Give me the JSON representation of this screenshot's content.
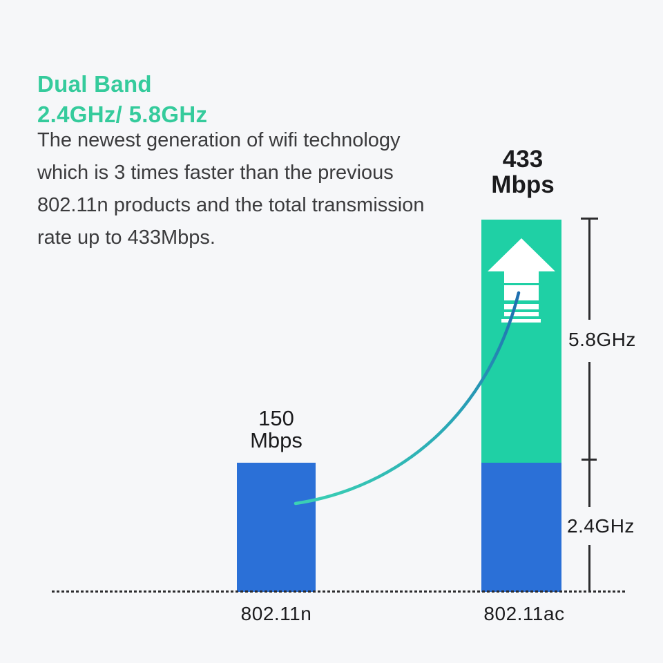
{
  "page": {
    "background": "#f6f7f9"
  },
  "header": {
    "title_line1": "Dual Band",
    "title_line2": "2.4GHz/ 5.8GHz",
    "title_color": "#35cb9c",
    "description": "The newest generation of wifi technology\nwhich is 3 times faster than the previous\n802.11n products and the total transmission\nrate up to 433Mbps."
  },
  "chart_data": {
    "type": "bar",
    "title": "",
    "xlabel": "",
    "ylabel": "",
    "categories": [
      "802.11n",
      "802.11ac"
    ],
    "series": [
      {
        "name": "2.4GHz",
        "color": "#2b70d7",
        "values": [
          150,
          150
        ]
      },
      {
        "name": "5.8GHz",
        "color": "#1fd0a5",
        "values": [
          0,
          283
        ]
      }
    ],
    "totals_mbps": [
      150,
      433
    ],
    "value_labels": [
      {
        "value": "150",
        "unit": "Mbps"
      },
      {
        "value": "433",
        "unit": "Mbps"
      }
    ],
    "band_labels": {
      "upper": "5.8GHz",
      "lower": "2.4GHz"
    },
    "ylim": [
      0,
      460
    ],
    "grid": false,
    "legend": "none",
    "baseline_style": "dashed",
    "annotations": [
      "growth curve from 802.11n bar to speed-up arrow",
      "dimension bracket marking 5.8GHz and 2.4GHz segments of 802.11ac bar"
    ]
  },
  "icons": {
    "speed_up_arrow": "white up arrow with trailing speed stripes inside 5.8GHz bar segment"
  },
  "colors": {
    "teal_bar": "#1fd0a5",
    "blue_bar": "#2b70d7",
    "curve_start": "#3bd2b4",
    "curve_end": "#1f6fb0",
    "line": "#2c2c2e",
    "label_text": "#1b1b1d",
    "body_text": "#3b3b3d",
    "arrow": "#ffffff"
  }
}
